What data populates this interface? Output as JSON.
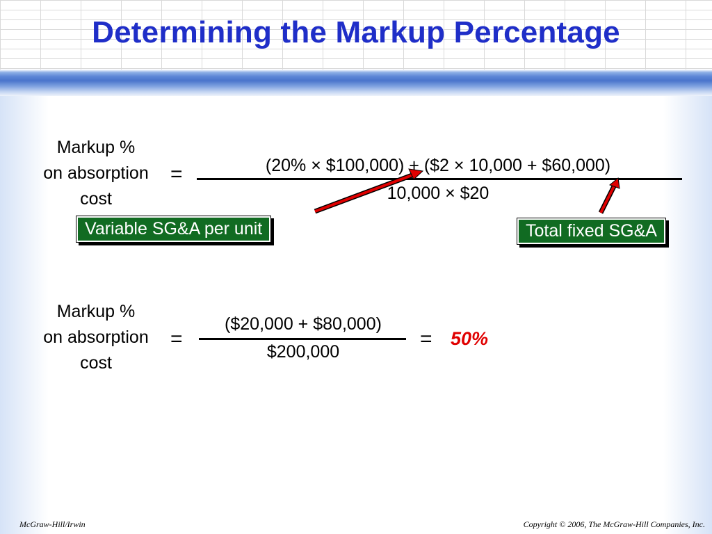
{
  "title": "Determining the Markup Percentage",
  "formula1": {
    "label_lines": [
      "Markup %",
      "on absorption",
      "cost"
    ],
    "equals": "=",
    "numerator": "(20% × $100,000) + ($2 × 10,000 + $60,000)",
    "denominator": "10,000 × $20"
  },
  "callouts": {
    "variable": "Variable SG&A per unit",
    "fixed": "Total fixed SG&A"
  },
  "formula2": {
    "label_lines": [
      "Markup %",
      "on absorption",
      "cost"
    ],
    "equals": "=",
    "numerator": "($20,000 + $80,000)",
    "denominator": "$200,000",
    "equals2": "=",
    "result": "50%"
  },
  "footer": {
    "left": "McGraw-Hill/Irwin",
    "right": "Copyright © 2006, The McGraw-Hill Companies, Inc."
  },
  "colors": {
    "title": "#1f2ec8",
    "callout_bg": "#116b22",
    "arrow": "#e00000",
    "result": "#e00000"
  }
}
